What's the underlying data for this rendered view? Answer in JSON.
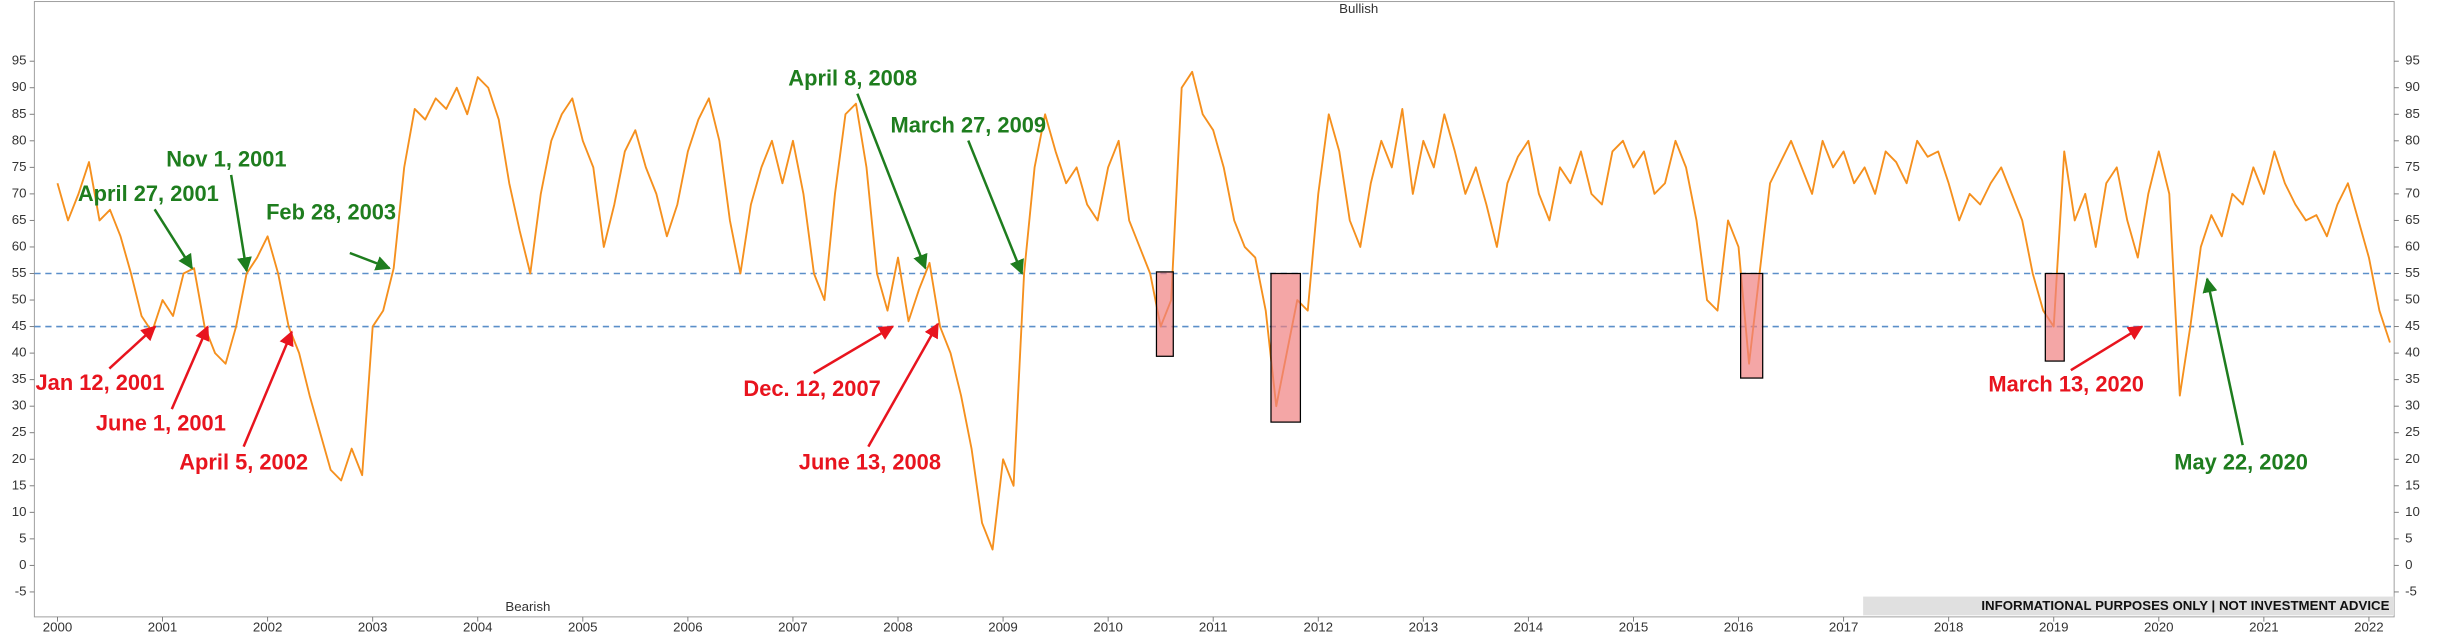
{
  "chart_data": {
    "type": "line",
    "color": "#f5901e",
    "top_label": "Bullish",
    "bottom_label": "Bearish",
    "disclaimer": "INFORMATIONAL PURPOSES ONLY | NOT INVESTMENT ADVICE",
    "xlim": [
      1999.78,
      2022.24
    ],
    "ylim": [
      -9.7,
      103
    ],
    "xticks": [
      2000,
      2001,
      2002,
      2003,
      2004,
      2005,
      2006,
      2007,
      2008,
      2009,
      2010,
      2011,
      2012,
      2013,
      2014,
      2015,
      2016,
      2017,
      2018,
      2019,
      2020,
      2021,
      2022
    ],
    "yticks": [
      -5,
      0,
      5,
      10,
      15,
      20,
      25,
      30,
      35,
      40,
      45,
      50,
      55,
      60,
      65,
      70,
      75,
      80,
      85,
      90,
      95
    ],
    "reference_lines": [
      55,
      45
    ],
    "reference_color": "#5b8fc9",
    "highlights": [
      {
        "x": [
          2010.46,
          2010.62
        ],
        "y": [
          39.4,
          55.3
        ]
      },
      {
        "x": [
          2011.55,
          2011.83
        ],
        "y": [
          27,
          55
        ]
      },
      {
        "x": [
          2016.02,
          2016.23
        ],
        "y": [
          35.3,
          55
        ]
      },
      {
        "x": [
          2018.92,
          2019.1
        ],
        "y": [
          38.5,
          55
        ]
      }
    ],
    "annotations": [
      {
        "text": "April 27, 2001",
        "color": "#1e7d1e",
        "x": 2001.28,
        "y": 56
      },
      {
        "text": "Nov 1, 2001",
        "color": "#1e7d1e",
        "x": 2001.8,
        "y": 55.5
      },
      {
        "text": "Feb 28, 2003",
        "color": "#1e7d1e",
        "x": 2003.16,
        "y": 56
      },
      {
        "text": "April 8, 2008",
        "color": "#1e7d1e",
        "x": 2008.26,
        "y": 56
      },
      {
        "text": "March 27, 2009",
        "color": "#1e7d1e",
        "x": 2009.18,
        "y": 55
      },
      {
        "text": "May 22, 2020",
        "color": "#1e7d1e",
        "x": 2020.46,
        "y": 54
      },
      {
        "text": "Jan 12, 2001",
        "color": "#e8141e",
        "x": 2000.93,
        "y": 45
      },
      {
        "text": "June 1, 2001",
        "color": "#e8141e",
        "x": 2001.43,
        "y": 45
      },
      {
        "text": "April 5, 2002",
        "color": "#e8141e",
        "x": 2002.23,
        "y": 44
      },
      {
        "text": "Dec. 12, 2007",
        "color": "#e8141e",
        "x": 2007.95,
        "y": 45
      },
      {
        "text": "June 13, 2008",
        "color": "#e8141e",
        "x": 2008.38,
        "y": 45.5
      },
      {
        "text": "March 13, 2020",
        "color": "#e8141e",
        "x": 2019.84,
        "y": 45
      }
    ],
    "x": [
      2000.0,
      2000.1,
      2000.2,
      2000.3,
      2000.4,
      2000.5,
      2000.6,
      2000.7,
      2000.8,
      2000.9,
      2001.0,
      2001.1,
      2001.2,
      2001.3,
      2001.4,
      2001.5,
      2001.6,
      2001.7,
      2001.8,
      2001.9,
      2002.0,
      2002.1,
      2002.2,
      2002.3,
      2002.4,
      2002.5,
      2002.6,
      2002.7,
      2002.8,
      2002.9,
      2003.0,
      2003.1,
      2003.2,
      2003.3,
      2003.4,
      2003.5,
      2003.6,
      2003.7,
      2003.8,
      2003.9,
      2004.0,
      2004.1,
      2004.2,
      2004.3,
      2004.4,
      2004.5,
      2004.6,
      2004.7,
      2004.8,
      2004.9,
      2005.0,
      2005.1,
      2005.2,
      2005.3,
      2005.4,
      2005.5,
      2005.6,
      2005.7,
      2005.8,
      2005.9,
      2006.0,
      2006.1,
      2006.2,
      2006.3,
      2006.4,
      2006.5,
      2006.6,
      2006.7,
      2006.8,
      2006.9,
      2007.0,
      2007.1,
      2007.2,
      2007.3,
      2007.4,
      2007.5,
      2007.6,
      2007.7,
      2007.8,
      2007.9,
      2008.0,
      2008.1,
      2008.2,
      2008.3,
      2008.4,
      2008.5,
      2008.6,
      2008.7,
      2008.8,
      2008.9,
      2009.0,
      2009.1,
      2009.2,
      2009.3,
      2009.4,
      2009.5,
      2009.6,
      2009.7,
      2009.8,
      2009.9,
      2010.0,
      2010.1,
      2010.2,
      2010.3,
      2010.4,
      2010.5,
      2010.6,
      2010.7,
      2010.8,
      2010.9,
      2011.0,
      2011.1,
      2011.2,
      2011.3,
      2011.4,
      2011.5,
      2011.6,
      2011.7,
      2011.8,
      2011.9,
      2012.0,
      2012.1,
      2012.2,
      2012.3,
      2012.4,
      2012.5,
      2012.6,
      2012.7,
      2012.8,
      2012.9,
      2013.0,
      2013.1,
      2013.2,
      2013.3,
      2013.4,
      2013.5,
      2013.6,
      2013.7,
      2013.8,
      2013.9,
      2014.0,
      2014.1,
      2014.2,
      2014.3,
      2014.4,
      2014.5,
      2014.6,
      2014.7,
      2014.8,
      2014.9,
      2015.0,
      2015.1,
      2015.2,
      2015.3,
      2015.4,
      2015.5,
      2015.6,
      2015.7,
      2015.8,
      2015.9,
      2016.0,
      2016.1,
      2016.2,
      2016.3,
      2016.4,
      2016.5,
      2016.6,
      2016.7,
      2016.8,
      2016.9,
      2017.0,
      2017.1,
      2017.2,
      2017.3,
      2017.4,
      2017.5,
      2017.6,
      2017.7,
      2017.8,
      2017.9,
      2018.0,
      2018.1,
      2018.2,
      2018.3,
      2018.4,
      2018.5,
      2018.6,
      2018.7,
      2018.8,
      2018.9,
      2019.0,
      2019.1,
      2019.2,
      2019.3,
      2019.4,
      2019.5,
      2019.6,
      2019.7,
      2019.8,
      2019.9,
      2020.0,
      2020.1,
      2020.2,
      2020.3,
      2020.4,
      2020.5,
      2020.6,
      2020.7,
      2020.8,
      2020.9,
      2021.0,
      2021.1,
      2021.2,
      2021.3,
      2021.4,
      2021.5,
      2021.6,
      2021.7,
      2021.8,
      2021.9,
      2022.0,
      2022.1,
      2022.2
    ],
    "values": [
      72,
      65,
      70,
      76,
      65,
      67,
      62,
      55,
      47,
      44,
      50,
      47,
      55,
      56,
      45,
      40,
      38,
      45,
      55,
      58,
      62,
      55,
      45,
      40,
      32,
      25,
      18,
      16,
      22,
      17,
      45,
      48,
      56,
      75,
      86,
      84,
      88,
      86,
      90,
      85,
      92,
      90,
      84,
      72,
      63,
      55,
      70,
      80,
      85,
      88,
      80,
      75,
      60,
      68,
      78,
      82,
      75,
      70,
      62,
      68,
      78,
      84,
      88,
      80,
      65,
      55,
      68,
      75,
      80,
      72,
      80,
      70,
      55,
      50,
      70,
      85,
      87,
      75,
      55,
      48,
      58,
      46,
      52,
      57,
      45,
      40,
      32,
      22,
      8,
      3,
      20,
      15,
      55,
      75,
      85,
      78,
      72,
      75,
      68,
      65,
      75,
      80,
      65,
      60,
      55,
      45,
      50,
      90,
      93,
      85,
      82,
      75,
      65,
      60,
      58,
      48,
      30,
      40,
      50,
      48,
      70,
      85,
      78,
      65,
      60,
      72,
      80,
      75,
      86,
      70,
      80,
      75,
      85,
      78,
      70,
      75,
      68,
      60,
      72,
      77,
      80,
      70,
      65,
      75,
      72,
      78,
      70,
      68,
      78,
      80,
      75,
      78,
      70,
      72,
      80,
      75,
      65,
      50,
      48,
      65,
      60,
      38,
      55,
      72,
      76,
      80,
      75,
      70,
      80,
      75,
      78,
      72,
      75,
      70,
      78,
      76,
      72,
      80,
      77,
      78,
      72,
      65,
      70,
      68,
      72,
      75,
      70,
      65,
      55,
      48,
      45,
      78,
      65,
      70,
      60,
      72,
      75,
      65,
      58,
      70,
      78,
      70,
      32,
      45,
      60,
      66,
      62,
      70,
      68,
      75,
      70,
      78,
      72,
      68,
      65,
      66,
      62,
      68,
      72,
      65,
      58,
      48,
      42
    ]
  }
}
